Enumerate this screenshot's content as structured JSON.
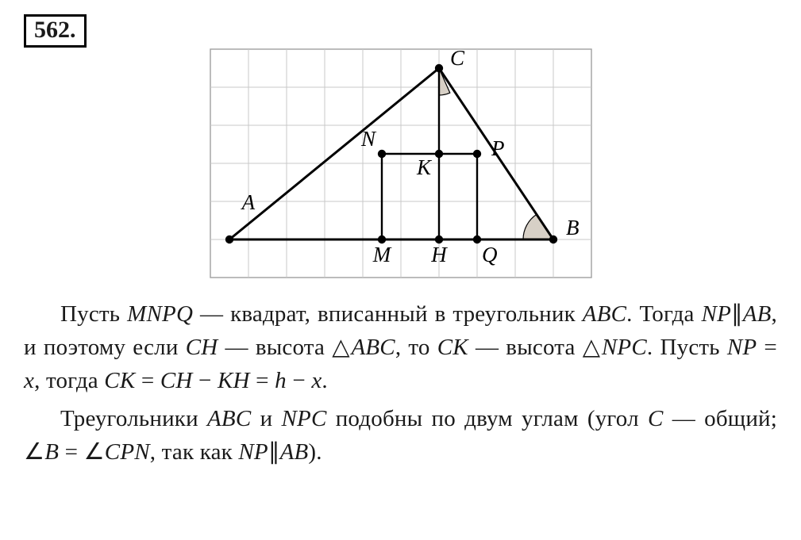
{
  "problem_number": "562.",
  "figure": {
    "grid": {
      "cols": 10,
      "rows": 6,
      "cell": 48,
      "grid_color": "#c8c8c8",
      "grid_border_color": "#a0a0a0",
      "background": "#ffffff"
    },
    "stroke_main": "#000000",
    "stroke_width_main": 3,
    "stroke_width_aux": 2.4,
    "point_radius": 5.2,
    "label_fontsize": 27,
    "labels": {
      "A": "A",
      "B": "B",
      "C": "C",
      "N": "N",
      "P": "P",
      "K": "K",
      "M": "M",
      "H": "H",
      "Q": "Q"
    },
    "shade_fill": "#d7d0c6",
    "points": {
      "A_outer": {
        "gx": 0.5,
        "gy": 5
      },
      "A_label": {
        "gx": 1.2,
        "gy": 4
      },
      "B": {
        "gx": 9,
        "gy": 5
      },
      "C": {
        "gx": 6,
        "gy": 0.5
      },
      "N": {
        "gx": 4.5,
        "gy": 2.75
      },
      "P": {
        "gx": 7,
        "gy": 2.75
      },
      "K": {
        "gx": 6,
        "gy": 2.75
      },
      "M": {
        "gx": 4.5,
        "gy": 5
      },
      "H": {
        "gx": 6,
        "gy": 5
      },
      "Q": {
        "gx": 7,
        "gy": 5
      }
    }
  },
  "paragraph1_parts": [
    {
      "t": "Пусть "
    },
    {
      "t": "MNPQ",
      "m": true
    },
    {
      "t": " — квадрат, вписанный в треугольник "
    },
    {
      "t": "ABC",
      "m": true
    },
    {
      "t": ". Тогда "
    },
    {
      "t": "NP",
      "m": true
    },
    {
      "t": "∥",
      "up": true
    },
    {
      "t": "AB",
      "m": true
    },
    {
      "t": ", и поэтому если "
    },
    {
      "t": "CH",
      "m": true
    },
    {
      "t": " — высота △"
    },
    {
      "t": "ABC",
      "m": true
    },
    {
      "t": ", то "
    },
    {
      "t": "CK",
      "m": true
    },
    {
      "t": " — высота △"
    },
    {
      "t": "NPC",
      "m": true
    },
    {
      "t": ". Пусть "
    },
    {
      "t": "NP",
      "m": true
    },
    {
      "t": " = ",
      "up": true
    },
    {
      "t": "x",
      "m": true
    },
    {
      "t": ", тогда "
    },
    {
      "t": "CK",
      "m": true
    },
    {
      "t": " = ",
      "up": true
    },
    {
      "t": "CH",
      "m": true
    },
    {
      "t": " − ",
      "up": true
    },
    {
      "t": "KH",
      "m": true
    },
    {
      "t": " = ",
      "up": true
    },
    {
      "t": "h",
      "m": true
    },
    {
      "t": " − ",
      "up": true
    },
    {
      "t": "x",
      "m": true
    },
    {
      "t": "."
    }
  ],
  "paragraph2_parts": [
    {
      "t": "Треугольники "
    },
    {
      "t": "ABC",
      "m": true
    },
    {
      "t": " и "
    },
    {
      "t": "NPC",
      "m": true
    },
    {
      "t": " подобны по двум углам (угол "
    },
    {
      "t": "C",
      "m": true
    },
    {
      "t": " — общий; ∠"
    },
    {
      "t": "B",
      "m": true
    },
    {
      "t": " = ∠",
      "up": true
    },
    {
      "t": "CPN",
      "m": true
    },
    {
      "t": ", так как "
    },
    {
      "t": "NP",
      "m": true
    },
    {
      "t": "∥",
      "up": true
    },
    {
      "t": "AB",
      "m": true
    },
    {
      "t": ")."
    }
  ]
}
